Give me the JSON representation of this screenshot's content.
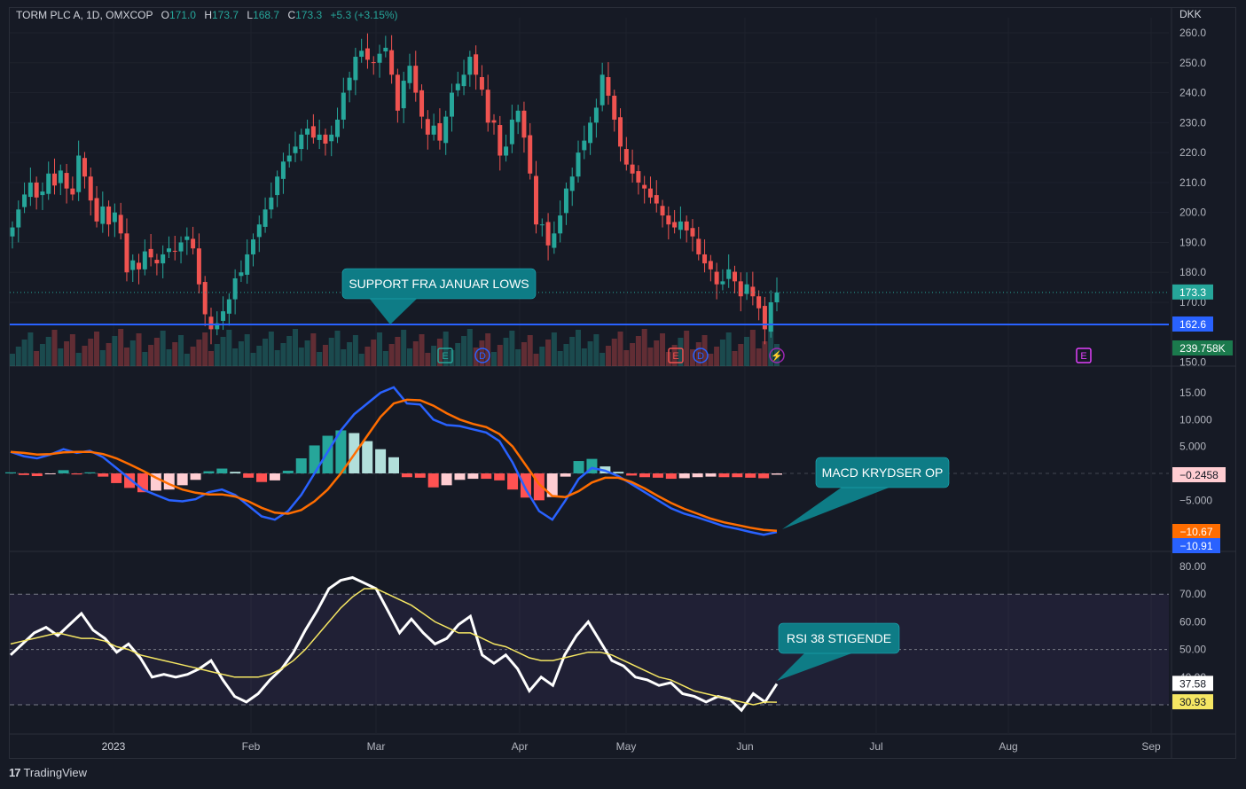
{
  "header": {
    "symbol": "TORM PLC A, 1D, OMXCOP",
    "o_label": "O",
    "o_value": "171.0",
    "h_label": "H",
    "h_value": "173.7",
    "l_label": "L",
    "l_value": "168.7",
    "c_label": "C",
    "c_value": "173.3",
    "change": "+5.3 (+3.15%)",
    "currency": "DKK"
  },
  "footer": {
    "brand": "TradingView"
  },
  "colors": {
    "up": "#26a69a",
    "down": "#ef5350",
    "support": "#2962ff",
    "macd": "#2962ff",
    "signal": "#ff6d00",
    "rsi": "#ffffff",
    "rsi_ma": "#f5e663",
    "callout": "#0e7c86"
  },
  "chart_data": [
    {
      "type": "candlestick",
      "title": "TORM PLC A, 1D, OMXCOP",
      "ylim": [
        150,
        262
      ],
      "y_ticks": [
        "260.0",
        "250.0",
        "240.0",
        "230.0",
        "220.0",
        "210.0",
        "200.0",
        "190.0",
        "180.0",
        "170.0",
        "150.0"
      ],
      "x_ticks": [
        "2023",
        "Feb",
        "Mar",
        "Apr",
        "May",
        "Jun",
        "Jul",
        "Aug",
        "Sep"
      ],
      "last_price_label": "173.3",
      "support_label": "162.6",
      "volume_label": "239.758K",
      "support_level": 162.6,
      "annotation": "SUPPORT FRA JANUAR LOWS",
      "event_markers": [
        "E",
        "D",
        "E",
        "D",
        "⚡",
        "E"
      ],
      "closes": [
        195,
        201,
        206,
        210,
        205,
        207,
        213,
        209,
        214,
        208,
        206,
        219,
        212,
        204,
        197,
        202,
        196,
        200,
        193,
        180,
        184,
        181,
        187,
        185,
        183,
        186,
        188,
        187,
        190,
        192,
        188,
        176,
        166,
        161,
        163,
        167,
        171,
        178,
        180,
        186,
        191,
        196,
        201,
        205,
        212,
        217,
        219,
        222,
        226,
        228,
        225,
        226,
        223,
        226,
        231,
        240,
        245,
        252,
        254,
        251,
        250,
        253,
        255,
        246,
        234,
        244,
        249,
        240,
        232,
        226,
        229,
        224,
        232,
        240,
        243,
        246,
        252,
        246,
        241,
        230,
        230,
        219,
        222,
        231,
        234,
        225,
        213,
        196,
        196,
        189,
        193,
        199,
        208,
        212,
        220,
        224,
        230,
        235,
        246,
        239,
        231,
        222,
        216,
        213,
        210,
        208,
        205,
        203,
        199,
        196,
        195,
        197,
        194,
        192,
        186,
        183,
        181,
        176,
        177,
        181,
        177,
        172,
        176,
        172,
        168,
        161,
        170,
        173.3
      ],
      "volume_note": "volume histogram at bottom of price pane"
    },
    {
      "type": "line",
      "title": "MACD",
      "ylim": [
        -14,
        18
      ],
      "y_ticks": [
        "15.00",
        "10.000",
        "5.000",
        "−5.000"
      ],
      "histogram_label": "−0.2458",
      "signal_label": "−10.67",
      "macd_label": "−10.91",
      "annotation": "MACD KRYDSER OP",
      "series": [
        {
          "name": "MACD",
          "values": [
            4,
            3.2,
            2.8,
            3.5,
            4.5,
            3.8,
            4.2,
            3,
            1,
            -1,
            -3,
            -4,
            -5,
            -5.2,
            -4.8,
            -3.5,
            -3,
            -4,
            -6,
            -8,
            -8.6,
            -7,
            -4,
            0,
            4,
            8,
            11,
            13,
            15,
            16,
            13,
            12.8,
            10,
            9,
            8.8,
            8.2,
            7.6,
            6,
            2,
            -3,
            -7,
            -8.6,
            -5,
            -1,
            1,
            0.5,
            -0.5,
            -2,
            -3.5,
            -5,
            -6.5,
            -7.5,
            -8.2,
            -9,
            -9.8,
            -10.3,
            -10.9,
            -11.4,
            -10.91
          ]
        },
        {
          "name": "Signal",
          "values": [
            4,
            3.8,
            3.5,
            3.6,
            3.9,
            4,
            4,
            3.6,
            2.8,
            1.7,
            0.5,
            -0.8,
            -2,
            -3,
            -3.6,
            -3.9,
            -3.9,
            -4.3,
            -5.2,
            -6.4,
            -7.3,
            -7.5,
            -6.8,
            -5.2,
            -3,
            0,
            3.5,
            7,
            10.5,
            13,
            13.7,
            13.6,
            12.6,
            11.2,
            10,
            9.2,
            8.6,
            7.3,
            5,
            1.5,
            -2,
            -4.2,
            -4.4,
            -3.3,
            -1.7,
            -0.8,
            -0.8,
            -1.6,
            -2.8,
            -4.2,
            -5.5,
            -6.6,
            -7.5,
            -8.4,
            -9.1,
            -9.6,
            -10.1,
            -10.5,
            -10.67
          ]
        }
      ],
      "histogram": [
        0.2,
        -0.3,
        -0.5,
        -0.1,
        0.6,
        -0.2,
        0.2,
        -0.6,
        -1.8,
        -2.7,
        -3.5,
        -3.2,
        -3,
        -2.2,
        -1.2,
        0.4,
        0.9,
        0.3,
        -0.8,
        -1.6,
        -1.3,
        0.5,
        2.8,
        5.2,
        7,
        8,
        7.5,
        6,
        4.5,
        3,
        -0.7,
        -0.8,
        -2.6,
        -2.2,
        -1.2,
        -1,
        -1,
        -1.3,
        -3,
        -4.5,
        -5,
        -4.4,
        -0.6,
        2.3,
        2.7,
        1.3,
        0.3,
        -0.4,
        -0.7,
        -0.8,
        -1,
        -0.9,
        -0.7,
        -0.6,
        -0.7,
        -0.7,
        -0.8,
        -0.9,
        -0.2458
      ]
    },
    {
      "type": "line",
      "title": "RSI",
      "ylim": [
        25,
        85
      ],
      "y_ticks": [
        "80.00",
        "70.00",
        "60.00",
        "50.00",
        "40.00"
      ],
      "bands": [
        70,
        30
      ],
      "mid": 50,
      "rsi_label": "37.58",
      "rsi_ma_label": "30.93",
      "annotation": "RSI 38 STIGENDE",
      "series": [
        {
          "name": "RSI",
          "values": [
            48,
            52,
            56,
            58,
            55,
            59,
            63,
            57,
            54,
            49,
            52,
            47,
            40,
            41,
            40,
            41,
            43,
            46,
            39,
            33,
            31,
            34,
            39,
            43,
            49,
            57,
            64,
            72,
            75,
            76,
            74,
            72,
            64,
            56,
            61,
            56,
            52,
            54,
            59,
            62,
            48,
            45,
            48,
            43,
            35,
            40,
            37,
            48,
            55,
            60,
            53,
            46,
            44,
            40,
            39,
            37,
            38,
            34,
            33,
            31,
            33,
            32,
            28,
            34,
            31,
            37.58
          ]
        },
        {
          "name": "RSI MA",
          "values": [
            52,
            53,
            54,
            55,
            56,
            55,
            54,
            54,
            53,
            51,
            50,
            48,
            47,
            46,
            45,
            44,
            43,
            42,
            41,
            40,
            40,
            40,
            41,
            43,
            46,
            50,
            55,
            60,
            65,
            69,
            72,
            72,
            70,
            68,
            66,
            63,
            60,
            58,
            56,
            56,
            54,
            52,
            51,
            49,
            47,
            46,
            46,
            47,
            48,
            49,
            49,
            48,
            46,
            44,
            42,
            40,
            39,
            37,
            35,
            34,
            33,
            32,
            31,
            30,
            31,
            30.93
          ]
        }
      ]
    }
  ]
}
